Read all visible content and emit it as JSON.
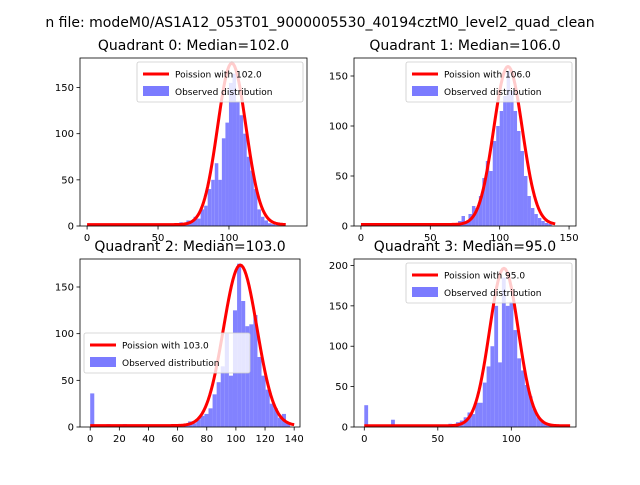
{
  "figure": {
    "suptitle": "n file: modeM0/AS1A12_053T01_9000005530_40194cztM0_level2_quad_clean"
  },
  "colors": {
    "fit": "#ff0000",
    "hist": "#7b7bff",
    "axis": "#000000"
  },
  "chart_data": [
    {
      "type": "histogram+line",
      "title": "Quadrant 0: Median=102.0",
      "xlim": [
        -5,
        155
      ],
      "ylim": [
        0,
        182
      ],
      "xticks": [
        "0",
        "50",
        "100"
      ],
      "xtick_values": [
        0,
        50,
        100
      ],
      "yticks": [
        "0",
        "50",
        "100",
        "150"
      ],
      "ytick_values": [
        0,
        50,
        100,
        150
      ],
      "legend_loc": "upper-right",
      "legend": [
        "Poission with 102.0",
        "Observed distribution"
      ],
      "fit_mean": 102.0,
      "fit_peak": 175,
      "fit_sigma": 10,
      "bin_width": 2.5,
      "hist": [
        [
          0,
          1
        ],
        [
          60,
          2
        ],
        [
          62.5,
          1
        ],
        [
          65,
          4
        ],
        [
          67.5,
          2
        ],
        [
          70,
          6
        ],
        [
          72.5,
          5
        ],
        [
          75,
          10
        ],
        [
          77.5,
          8
        ],
        [
          80,
          18
        ],
        [
          82.5,
          22
        ],
        [
          85,
          40
        ],
        [
          87.5,
          50
        ],
        [
          90,
          68
        ],
        [
          92.5,
          50
        ],
        [
          95,
          95
        ],
        [
          97.5,
          112
        ],
        [
          100,
          155
        ],
        [
          102.5,
          165
        ],
        [
          105,
          135
        ],
        [
          107.5,
          120
        ],
        [
          110,
          100
        ],
        [
          112.5,
          75
        ],
        [
          115,
          60
        ],
        [
          117.5,
          40
        ],
        [
          120,
          18
        ],
        [
          122.5,
          10
        ],
        [
          125,
          6
        ],
        [
          127.5,
          3
        ],
        [
          130,
          2
        ],
        [
          132.5,
          1
        ]
      ]
    },
    {
      "type": "histogram+line",
      "title": "Quadrant 1: Median=106.0",
      "xlim": [
        -5,
        155
      ],
      "ylim": [
        0,
        168
      ],
      "xticks": [
        "0",
        "50",
        "100",
        "150"
      ],
      "xtick_values": [
        0,
        50,
        100,
        150
      ],
      "yticks": [
        "0",
        "50",
        "100",
        "150"
      ],
      "ytick_values": [
        0,
        50,
        100,
        150
      ],
      "legend_loc": "upper-right",
      "legend": [
        "Poission with 106.0",
        "Observed distribution"
      ],
      "fit_mean": 106.0,
      "fit_peak": 158,
      "fit_sigma": 10.3,
      "bin_width": 2.5,
      "hist": [
        [
          0,
          1
        ],
        [
          62.5,
          2
        ],
        [
          65,
          3
        ],
        [
          67.5,
          2
        ],
        [
          70,
          5
        ],
        [
          72.5,
          10
        ],
        [
          75,
          4
        ],
        [
          77.5,
          12
        ],
        [
          80,
          20
        ],
        [
          82.5,
          18
        ],
        [
          85,
          30
        ],
        [
          87.5,
          48
        ],
        [
          90,
          65
        ],
        [
          92.5,
          55
        ],
        [
          95,
          85
        ],
        [
          97.5,
          100
        ],
        [
          100,
          115
        ],
        [
          102.5,
          130
        ],
        [
          105,
          155
        ],
        [
          107.5,
          135
        ],
        [
          110,
          115
        ],
        [
          112.5,
          95
        ],
        [
          115,
          75
        ],
        [
          117.5,
          50
        ],
        [
          120,
          30
        ],
        [
          122.5,
          18
        ],
        [
          125,
          12
        ],
        [
          127.5,
          8
        ],
        [
          130,
          5
        ],
        [
          132.5,
          3
        ],
        [
          135,
          2
        ]
      ]
    },
    {
      "type": "histogram+line",
      "title": "Quadrant 2: Median=103.0",
      "xlim": [
        -7,
        144
      ],
      "ylim": [
        0,
        180
      ],
      "xticks": [
        "0",
        "20",
        "40",
        "60",
        "80",
        "100",
        "120",
        "140"
      ],
      "xtick_values": [
        0,
        20,
        40,
        60,
        80,
        100,
        120,
        140
      ],
      "yticks": [
        "0",
        "50",
        "100",
        "150"
      ],
      "ytick_values": [
        0,
        50,
        100,
        150
      ],
      "legend_loc": "center-left",
      "legend": [
        "Poission with 103.0",
        "Observed distribution"
      ],
      "fit_mean": 103.0,
      "fit_peak": 172,
      "fit_sigma": 11.5,
      "bin_width": 2.8,
      "hist": [
        [
          0,
          36
        ],
        [
          5.6,
          2
        ],
        [
          11.2,
          3
        ],
        [
          16.8,
          2
        ],
        [
          22.4,
          3
        ],
        [
          56,
          2
        ],
        [
          64.4,
          2
        ],
        [
          67.2,
          6
        ],
        [
          70,
          4
        ],
        [
          72.8,
          8
        ],
        [
          75.6,
          12
        ],
        [
          78.4,
          14
        ],
        [
          81.2,
          20
        ],
        [
          84,
          35
        ],
        [
          86.8,
          48
        ],
        [
          89.6,
          65
        ],
        [
          92.4,
          100
        ],
        [
          95.2,
          55
        ],
        [
          98,
          125
        ],
        [
          100.8,
          175
        ],
        [
          103.6,
          135
        ],
        [
          106.4,
          108
        ],
        [
          109.2,
          110
        ],
        [
          112,
          120
        ],
        [
          114.8,
          75
        ],
        [
          117.6,
          55
        ],
        [
          120.4,
          40
        ],
        [
          123.2,
          25
        ],
        [
          126,
          20
        ],
        [
          128.8,
          10
        ],
        [
          131.6,
          14
        ],
        [
          134.4,
          4
        ]
      ]
    },
    {
      "type": "histogram+line",
      "title": "Quadrant 3: Median=95.0",
      "xlim": [
        -7,
        144
      ],
      "ylim": [
        0,
        208
      ],
      "xticks": [
        "0",
        "50",
        "100"
      ],
      "xtick_values": [
        0,
        50,
        100
      ],
      "yticks": [
        "0",
        "50",
        "100",
        "150",
        "200"
      ],
      "ytick_values": [
        0,
        50,
        100,
        150,
        200
      ],
      "legend_loc": "upper-right",
      "legend": [
        "Poission with 95.0",
        "Observed distribution"
      ],
      "fit_mean": 95.0,
      "fit_peak": 195,
      "fit_sigma": 9.8,
      "bin_width": 2.6,
      "hist": [
        [
          0,
          27
        ],
        [
          7.8,
          2
        ],
        [
          13,
          3
        ],
        [
          18.2,
          9
        ],
        [
          49.4,
          2
        ],
        [
          57.2,
          4
        ],
        [
          62.4,
          6
        ],
        [
          65,
          8
        ],
        [
          67.6,
          12
        ],
        [
          70.2,
          18
        ],
        [
          72.8,
          16
        ],
        [
          75.4,
          30
        ],
        [
          78,
          30
        ],
        [
          80.6,
          55
        ],
        [
          83.2,
          75
        ],
        [
          85.8,
          100
        ],
        [
          88.4,
          150
        ],
        [
          91,
          80
        ],
        [
          93.6,
          185
        ],
        [
          96.2,
          150
        ],
        [
          98.8,
          155
        ],
        [
          101.4,
          120
        ],
        [
          104,
          85
        ],
        [
          106.6,
          70
        ],
        [
          109.2,
          52
        ],
        [
          111.8,
          38
        ],
        [
          114.4,
          22
        ],
        [
          117,
          12
        ],
        [
          119.6,
          7
        ],
        [
          122.2,
          5
        ],
        [
          124.8,
          3
        ]
      ]
    }
  ]
}
